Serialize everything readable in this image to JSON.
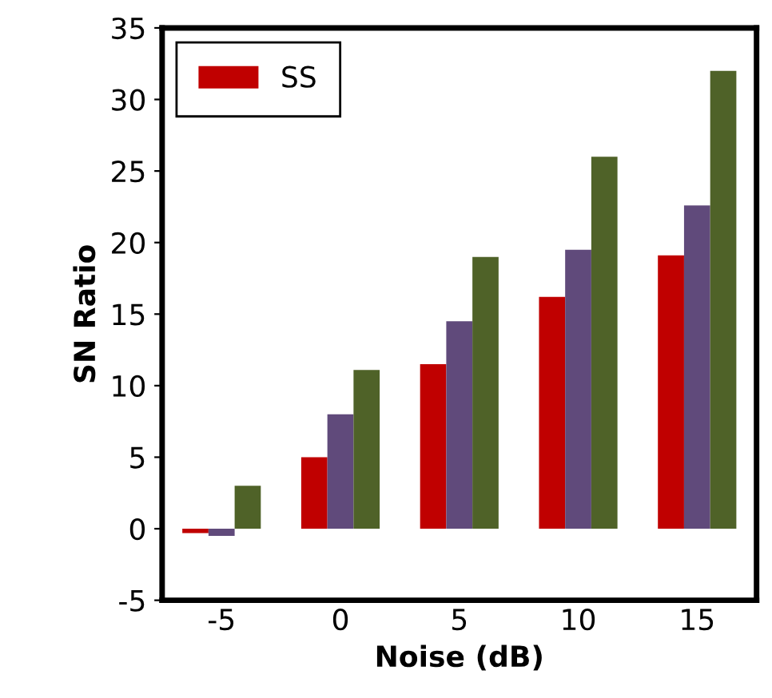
{
  "chart_data": {
    "type": "bar",
    "xlabel": "Noise (dB)",
    "ylabel": "SN Ratio",
    "categories": [
      "-5",
      "0",
      "5",
      "10",
      "15"
    ],
    "series": [
      {
        "name": "SS",
        "color": "#c00000",
        "values": [
          -0.3,
          5.0,
          11.5,
          16.2,
          19.1
        ]
      },
      {
        "color": "#604a7b",
        "values": [
          -0.5,
          8.0,
          14.5,
          19.5,
          22.6
        ]
      },
      {
        "color": "#4f6228",
        "values": [
          3.0,
          11.1,
          19.0,
          26.0,
          32.0
        ]
      }
    ],
    "ylim": [
      -5,
      35
    ],
    "yticks": [
      -5,
      0,
      5,
      10,
      15,
      20,
      25,
      30,
      35
    ],
    "grid": false,
    "legend": "top left"
  }
}
